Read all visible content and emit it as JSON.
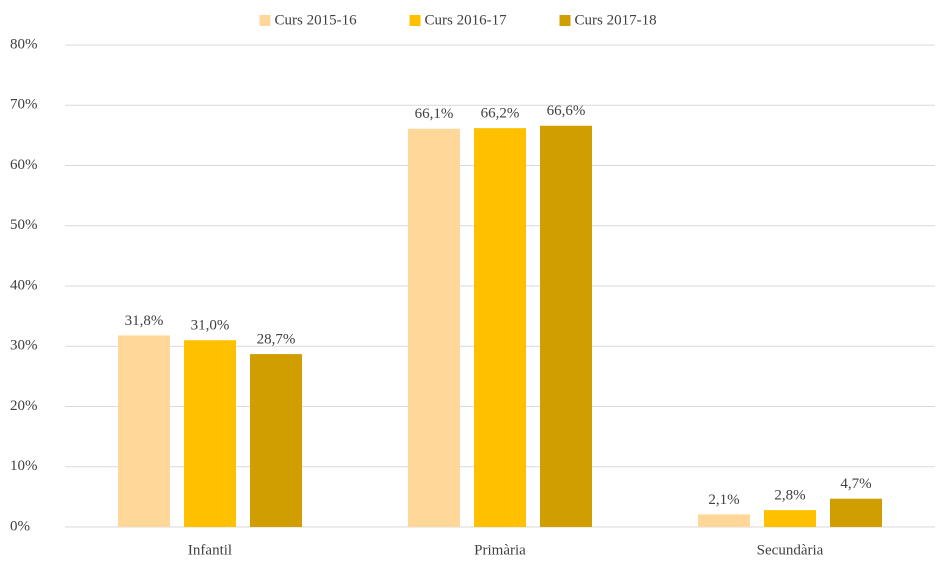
{
  "chart_data": {
    "type": "bar",
    "categories": [
      "Infantil",
      "Primària",
      "Secundària"
    ],
    "series": [
      {
        "name": "Curs 2015-16",
        "color": "#ffd899",
        "values": [
          31.8,
          66.1,
          2.1
        ],
        "value_labels": [
          "31,8%",
          "66,1%",
          "2,1%"
        ]
      },
      {
        "name": "Curs 2016-17",
        "color": "#ffc000",
        "values": [
          31.0,
          66.2,
          2.8
        ],
        "value_labels": [
          "31,0%",
          "66,2%",
          "2,8%"
        ]
      },
      {
        "name": "Curs 2017-18",
        "color": "#d09e00",
        "values": [
          28.7,
          66.6,
          4.7
        ],
        "value_labels": [
          "28,7%",
          "66,6%",
          "4,7%"
        ]
      }
    ],
    "ylim": [
      0,
      80
    ],
    "yticks": [
      {
        "value": 0,
        "label": "0%"
      },
      {
        "value": 10,
        "label": "10%"
      },
      {
        "value": 20,
        "label": "20%"
      },
      {
        "value": 30,
        "label": "30%"
      },
      {
        "value": 40,
        "label": "40%"
      },
      {
        "value": 50,
        "label": "50%"
      },
      {
        "value": 60,
        "label": "60%"
      },
      {
        "value": 70,
        "label": "70%"
      },
      {
        "value": 80,
        "label": "80%"
      }
    ],
    "grid": true,
    "legend": "top"
  }
}
